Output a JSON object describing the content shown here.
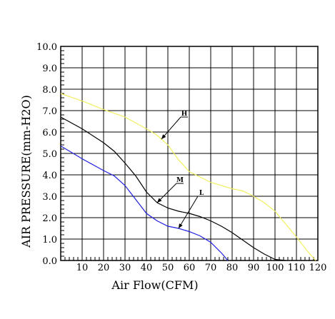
{
  "chart_data": {
    "type": "line",
    "xlabel": "Air Flow(CFM)",
    "ylabel": "AIR PRESSURE(mm-H2O)",
    "xlim": [
      0,
      120
    ],
    "ylim": [
      0,
      10
    ],
    "x_ticks": [
      10,
      20,
      30,
      40,
      50,
      60,
      70,
      80,
      90,
      100,
      110,
      120
    ],
    "x_tick_labels": [
      "10",
      "20",
      "30",
      "40",
      "50",
      "60",
      "70",
      "80",
      "90",
      "100",
      "110",
      "120"
    ],
    "y_ticks": [
      0,
      1,
      2,
      3,
      4,
      5,
      6,
      7,
      8,
      9,
      10
    ],
    "y_tick_labels": [
      "0.0",
      "1.0",
      "2.0",
      "3.0",
      "4.0",
      "5.0",
      "6.0",
      "7.0",
      "8.0",
      "9.0",
      "10.0"
    ],
    "grid": true,
    "series": [
      {
        "name": "H",
        "color": "#f0f060",
        "x": [
          0,
          10,
          20,
          30,
          40,
          45,
          50,
          55,
          60,
          70,
          80,
          85,
          90,
          95,
          100,
          105,
          110,
          115,
          119
        ],
        "y": [
          7.8,
          7.45,
          7.05,
          6.7,
          6.15,
          5.85,
          5.4,
          4.7,
          4.15,
          3.65,
          3.35,
          3.25,
          3.0,
          2.7,
          2.3,
          1.7,
          1.1,
          0.45,
          0
        ]
      },
      {
        "name": "M",
        "color": "#000000",
        "x": [
          0,
          10,
          20,
          25,
          30,
          35,
          40,
          45,
          50,
          55,
          60,
          65,
          70,
          75,
          80,
          85,
          90,
          95,
          100,
          105
        ],
        "y": [
          6.7,
          6.15,
          5.5,
          5.1,
          4.55,
          3.95,
          3.2,
          2.7,
          2.45,
          2.3,
          2.2,
          2.05,
          1.85,
          1.6,
          1.3,
          0.95,
          0.6,
          0.3,
          0.05,
          0
        ]
      },
      {
        "name": "L",
        "color": "#2020e0",
        "x": [
          0,
          10,
          20,
          25,
          30,
          35,
          40,
          45,
          50,
          55,
          60,
          65,
          70,
          75,
          78
        ],
        "y": [
          5.35,
          4.75,
          4.2,
          3.95,
          3.5,
          2.85,
          2.2,
          1.85,
          1.6,
          1.5,
          1.35,
          1.15,
          0.85,
          0.35,
          0
        ]
      }
    ],
    "annotations": [
      {
        "text": "H",
        "series": "H",
        "points_at_x": 47,
        "label_x": 56,
        "label_y": 6.7
      },
      {
        "text": "M",
        "series": "M",
        "points_at_x": 45,
        "label_x": 54,
        "label_y": 3.6
      },
      {
        "text": "L",
        "series": "L",
        "points_at_x": 55,
        "label_x": 64,
        "label_y": 3.0
      }
    ]
  }
}
